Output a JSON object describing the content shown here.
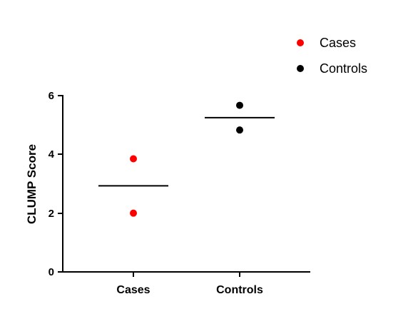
{
  "chart_data": {
    "type": "scatter",
    "title": "",
    "xlabel": "",
    "ylabel": "CLUMP Score",
    "categories": [
      "Cases",
      "Controls"
    ],
    "ylim": [
      0,
      6
    ],
    "yticks": [
      "0",
      "2",
      "4",
      "6"
    ],
    "grid": false,
    "legend_position": "top-right",
    "series": [
      {
        "name": "Cases",
        "category": "Cases",
        "color": "#ff0000",
        "values": [
          3.85,
          2.0
        ],
        "mean": 2.93
      },
      {
        "name": "Controls",
        "category": "Controls",
        "color": "#000000",
        "values": [
          5.67,
          4.83
        ],
        "mean": 5.25
      }
    ]
  }
}
